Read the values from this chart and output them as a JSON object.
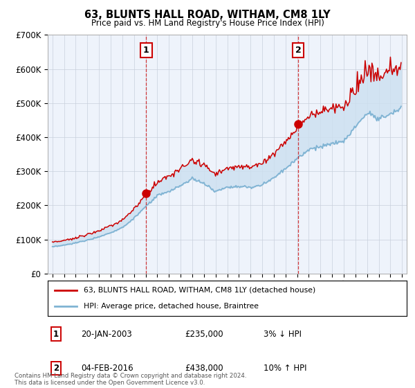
{
  "title": "63, BLUNTS HALL ROAD, WITHAM, CM8 1LY",
  "subtitle": "Price paid vs. HM Land Registry's House Price Index (HPI)",
  "ylim": [
    0,
    700000
  ],
  "yticks": [
    0,
    100000,
    200000,
    300000,
    400000,
    500000,
    600000,
    700000
  ],
  "xlim_start": 1994.6,
  "xlim_end": 2025.4,
  "transaction1_x": 2003.05,
  "transaction1_y": 235000,
  "transaction2_x": 2016.09,
  "transaction2_y": 438000,
  "legend_line1": "63, BLUNTS HALL ROAD, WITHAM, CM8 1LY (detached house)",
  "legend_line2": "HPI: Average price, detached house, Braintree",
  "note1_label": "1",
  "note1_date": "20-JAN-2003",
  "note1_price": "£235,000",
  "note1_hpi": "3% ↓ HPI",
  "note2_label": "2",
  "note2_date": "04-FEB-2016",
  "note2_price": "£438,000",
  "note2_hpi": "10% ↑ HPI",
  "footer": "Contains HM Land Registry data © Crown copyright and database right 2024.\nThis data is licensed under the Open Government Licence v3.0.",
  "line_color_red": "#cc0000",
  "line_color_blue": "#7fb3d3",
  "fill_color": "#cce0f0",
  "marker_box_color": "#cc0000",
  "bg_color": "#eef3fb",
  "grid_color": "#c8d0dc"
}
